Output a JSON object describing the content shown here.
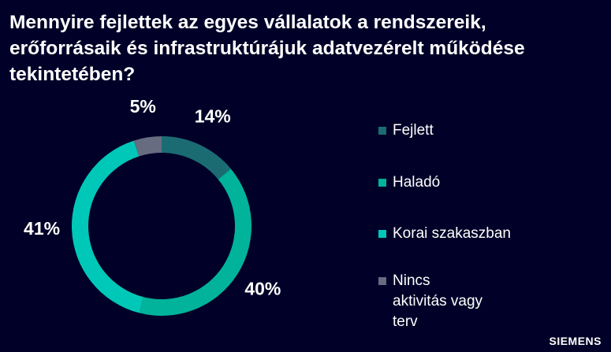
{
  "chart_data": {
    "type": "pie",
    "donut": true,
    "title": "Mennyire fejlettek az egyes vállalatok a rendszereik, erőforrásaik és infrastruktúrájuk adatvezérelt működése tekintetében?",
    "categories": [
      "Fejlett",
      "Haladó",
      "Korai szakaszban",
      "Nincs aktivitás vagy terv"
    ],
    "values": [
      14,
      40,
      41,
      5
    ],
    "value_labels": [
      "14%",
      "40%",
      "41%",
      "5%"
    ],
    "colors": [
      "#1b6c72",
      "#00b39a",
      "#00c8b8",
      "#676c80"
    ]
  },
  "brand": "SIEMENS"
}
